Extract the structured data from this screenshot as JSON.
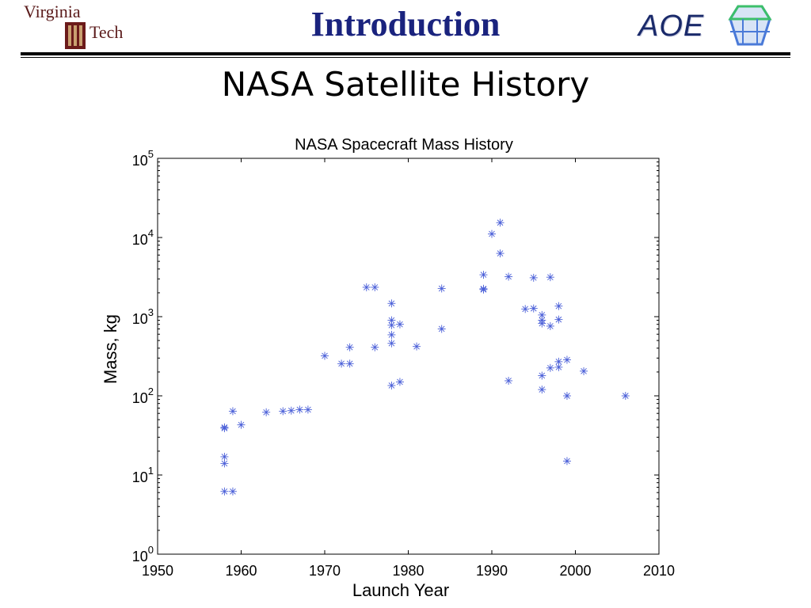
{
  "header": {
    "title": "Introduction",
    "subtitle": "NASA Satellite History",
    "logo_left_line1": "Virginia",
    "logo_left_line2": "Tech",
    "logo_right": "AOE"
  },
  "colors": {
    "header_title": "#1a237e",
    "marker": "#4a5fd8",
    "logo_maroon": "#6b1a1a"
  },
  "chart_data": {
    "type": "scatter",
    "title": "NASA Spacecraft Mass History",
    "xlabel": "Launch Year",
    "ylabel": "Mass, kg",
    "xlim": [
      1950,
      2010
    ],
    "ylim": [
      1,
      100000
    ],
    "y_scale": "log",
    "x_ticks": [
      "1950",
      "1960",
      "1970",
      "1980",
      "1990",
      "2000",
      "2010"
    ],
    "y_ticks": [
      {
        "value": 1,
        "base": "10",
        "exp": "0"
      },
      {
        "value": 10,
        "base": "10",
        "exp": "1"
      },
      {
        "value": 100,
        "base": "10",
        "exp": "2"
      },
      {
        "value": 1000,
        "base": "10",
        "exp": "3"
      },
      {
        "value": 10000,
        "base": "10",
        "exp": "4"
      },
      {
        "value": 100000,
        "base": "10",
        "exp": "5"
      }
    ],
    "grid": false,
    "marker": "asterisk",
    "points": [
      [
        1958,
        6.2
      ],
      [
        1959,
        6.2
      ],
      [
        1958,
        14
      ],
      [
        1958,
        17
      ],
      [
        1958,
        39
      ],
      [
        1958,
        40
      ],
      [
        1959,
        64
      ],
      [
        1960,
        43
      ],
      [
        1963,
        62
      ],
      [
        1965,
        64
      ],
      [
        1966,
        65
      ],
      [
        1967,
        67
      ],
      [
        1968,
        67
      ],
      [
        1970,
        320
      ],
      [
        1972,
        255
      ],
      [
        1973,
        255
      ],
      [
        1973,
        410
      ],
      [
        1975,
        2350
      ],
      [
        1976,
        2350
      ],
      [
        1976,
        410
      ],
      [
        1978,
        1470
      ],
      [
        1978,
        900
      ],
      [
        1978,
        780
      ],
      [
        1978,
        590
      ],
      [
        1978,
        460
      ],
      [
        1978,
        135
      ],
      [
        1979,
        800
      ],
      [
        1979,
        150
      ],
      [
        1981,
        420
      ],
      [
        1984,
        2270
      ],
      [
        1984,
        700
      ],
      [
        1989,
        3380
      ],
      [
        1989,
        2250
      ],
      [
        1989,
        2200
      ],
      [
        1990,
        11100
      ],
      [
        1991,
        15400
      ],
      [
        1991,
        6300
      ],
      [
        1992,
        3200
      ],
      [
        1992,
        155
      ],
      [
        1994,
        1250
      ],
      [
        1995,
        1270
      ],
      [
        1995,
        3100
      ],
      [
        1996,
        1050
      ],
      [
        1996,
        900
      ],
      [
        1996,
        820
      ],
      [
        1996,
        180
      ],
      [
        1996,
        120
      ],
      [
        1997,
        3150
      ],
      [
        1997,
        760
      ],
      [
        1997,
        225
      ],
      [
        1998,
        1360
      ],
      [
        1998,
        920
      ],
      [
        1998,
        270
      ],
      [
        1998,
        230
      ],
      [
        1999,
        285
      ],
      [
        1999,
        100
      ],
      [
        1999,
        15
      ],
      [
        2001,
        205
      ],
      [
        2006,
        100
      ]
    ]
  }
}
